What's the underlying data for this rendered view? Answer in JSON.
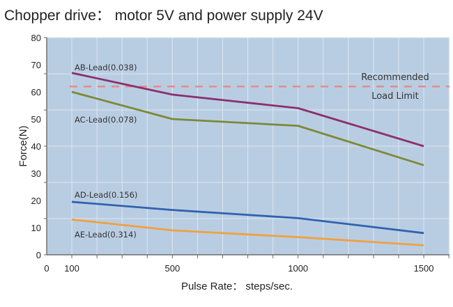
{
  "chart_data": {
    "type": "line",
    "title": "Chopper drive： motor 5V and power supply 24V",
    "xlabel": "Pulse Rate： steps/sec.",
    "ylabel": "Force(N)",
    "xlim": [
      0,
      1600
    ],
    "ylim": [
      0,
      80
    ],
    "x_ticks": [
      "0",
      "100",
      "500",
      "1000",
      "1500"
    ],
    "x_tick_values": [
      0,
      100,
      500,
      1000,
      1500
    ],
    "y_ticks": [
      "0",
      "10",
      "20",
      "30",
      "40",
      "50",
      "60",
      "70",
      "80"
    ],
    "y_tick_values": [
      0,
      10,
      20,
      30,
      40,
      50,
      60,
      70,
      80
    ],
    "grid": true,
    "x": [
      100,
      500,
      1000,
      1500
    ],
    "series": [
      {
        "name": "AB-Lead(0.038)",
        "values": [
          67,
          59,
          54,
          40
        ],
        "color": "#8a2f6e"
      },
      {
        "name": "AC-Lead(0.078)",
        "values": [
          60,
          50,
          47.5,
          33
        ],
        "color": "#7b8a36"
      },
      {
        "name": "AD-Lead(0.156)",
        "values": [
          19.5,
          16.5,
          13.5,
          8
        ],
        "color": "#2f62b0"
      },
      {
        "name": "AE-Lead(0.314)",
        "values": [
          13,
          9,
          6.5,
          3.5
        ],
        "color": "#f0a040"
      }
    ],
    "reference_line": {
      "value": 62,
      "label_line1": "Recommended",
      "label_line2": "Load Limit",
      "color": "#e88a8a"
    },
    "background": "#b9cde2"
  }
}
